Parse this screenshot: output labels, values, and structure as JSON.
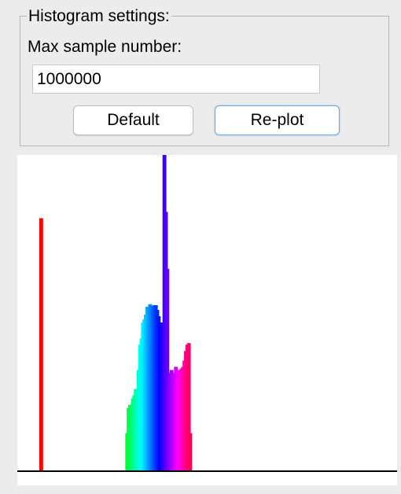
{
  "settings": {
    "title": "Histogram settings:",
    "max_sample_label": "Max sample number:",
    "max_sample_value": "1000000",
    "default_label": "Default",
    "replot_label": "Re-plot"
  },
  "colors": {
    "background": "#ececec",
    "plot_background": "#ffffff",
    "baseline": "#000000",
    "focus_ring": "#6fa4d8"
  },
  "chart_data": {
    "type": "bar",
    "xlabel": "",
    "ylabel": "",
    "grid": false,
    "ylim": [
      0,
      100
    ],
    "series": [
      {
        "values": [
          [
            0.0,
            80.0
          ],
          [
            150.0,
            12.0
          ],
          [
            152.5,
            20.0
          ],
          [
            155.0,
            21.0
          ],
          [
            157.5,
            20.0
          ],
          [
            160.0,
            23.0
          ],
          [
            162.5,
            24.0
          ],
          [
            165.0,
            26.0
          ],
          [
            167.5,
            26.0
          ],
          [
            170.0,
            32.0
          ],
          [
            172.5,
            40.0
          ],
          [
            175.0,
            42.0
          ],
          [
            177.5,
            47.0
          ],
          [
            180.0,
            48.0
          ],
          [
            182.5,
            49.5
          ],
          [
            185.0,
            52.0
          ],
          [
            187.5,
            52.0
          ],
          [
            190.0,
            52.8
          ],
          [
            192.5,
            52.3
          ],
          [
            195.0,
            52.0
          ],
          [
            197.5,
            52.5
          ],
          [
            200.0,
            52.5
          ],
          [
            202.5,
            51.0
          ],
          [
            205.0,
            49.0
          ],
          [
            207.5,
            47.0
          ],
          [
            210.0,
            47.0
          ],
          [
            212.5,
            46.5
          ],
          [
            215.0,
            100.0
          ],
          [
            217.5,
            82.0
          ],
          [
            220.0,
            64.0
          ],
          [
            222.5,
            31.0
          ],
          [
            225.0,
            30.0
          ],
          [
            227.5,
            32.0
          ],
          [
            230.0,
            31.0
          ],
          [
            232.5,
            28.0
          ],
          [
            235.0,
            33.0
          ],
          [
            237.5,
            32.0
          ],
          [
            240.0,
            30.0
          ],
          [
            242.5,
            32.0
          ],
          [
            245.0,
            32.5
          ],
          [
            247.5,
            33.0
          ],
          [
            250.0,
            35.0
          ],
          [
            252.5,
            38.0
          ],
          [
            255.0,
            40.0
          ],
          [
            257.5,
            40.5
          ],
          [
            260.0,
            12.0
          ]
        ]
      }
    ]
  }
}
